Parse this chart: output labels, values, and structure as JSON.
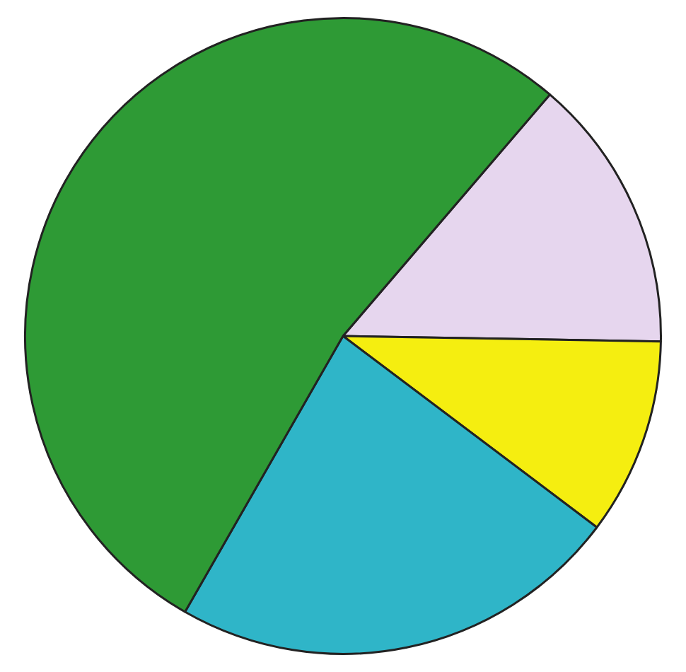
{
  "chart_data": {
    "type": "pie",
    "categories": [
      null,
      null,
      null,
      null
    ],
    "values": [
      14,
      10,
      23,
      53
    ],
    "colors": [
      "#e6d6ee",
      "#f5ee10",
      "#2fb5c8",
      "#2e9a35"
    ],
    "legend": false
  }
}
